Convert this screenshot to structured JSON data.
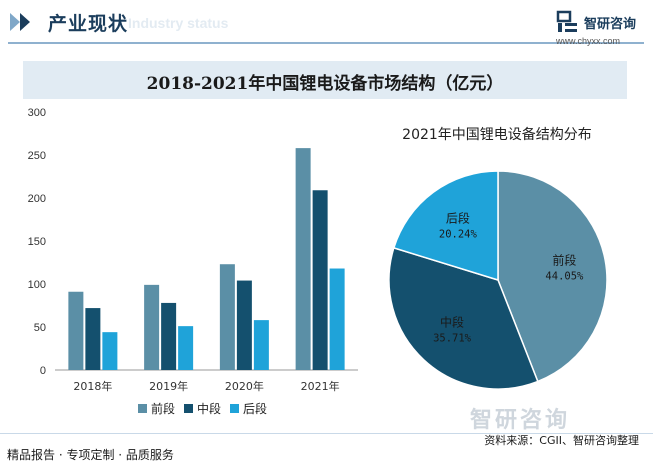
{
  "header": {
    "title": "产业现状",
    "ghost": "Industry status"
  },
  "brand": {
    "name": "智研咨询",
    "url": "www.chyxx.com",
    "watermark": "智研咨询"
  },
  "main_title": "2018-2021年中国锂电设备市场结构（亿元）",
  "footer": {
    "left": "精品报告 · 专项定制 · 品质服务",
    "source": "资料来源：CGII、智研咨询整理"
  },
  "colors": {
    "front": "#5b8fa6",
    "mid": "#14506e",
    "back": "#1fa3d9",
    "accent": "#1b3d5c"
  },
  "chart_data": [
    {
      "type": "bar",
      "title": "",
      "categories": [
        "2018年",
        "2019年",
        "2020年",
        "2021年"
      ],
      "series": [
        {
          "name": "前段",
          "values": [
            91,
            99,
            123,
            258
          ]
        },
        {
          "name": "中段",
          "values": [
            72,
            78,
            104,
            209
          ]
        },
        {
          "name": "后段",
          "values": [
            44,
            51,
            58,
            118
          ]
        }
      ],
      "ylim": [
        0,
        300
      ],
      "yticks": [
        "0",
        "50",
        "100",
        "150",
        "200",
        "250",
        "300"
      ],
      "xlabel": "",
      "ylabel": "",
      "legend": "bottom"
    },
    {
      "type": "pie",
      "title": "2021年中国锂电设备结构分布",
      "labels": [
        "前段",
        "中段",
        "后段"
      ],
      "values": [
        44.05,
        35.71,
        20.24
      ],
      "value_labels": [
        "44.05%",
        "35.71%",
        "20.24%"
      ]
    }
  ]
}
